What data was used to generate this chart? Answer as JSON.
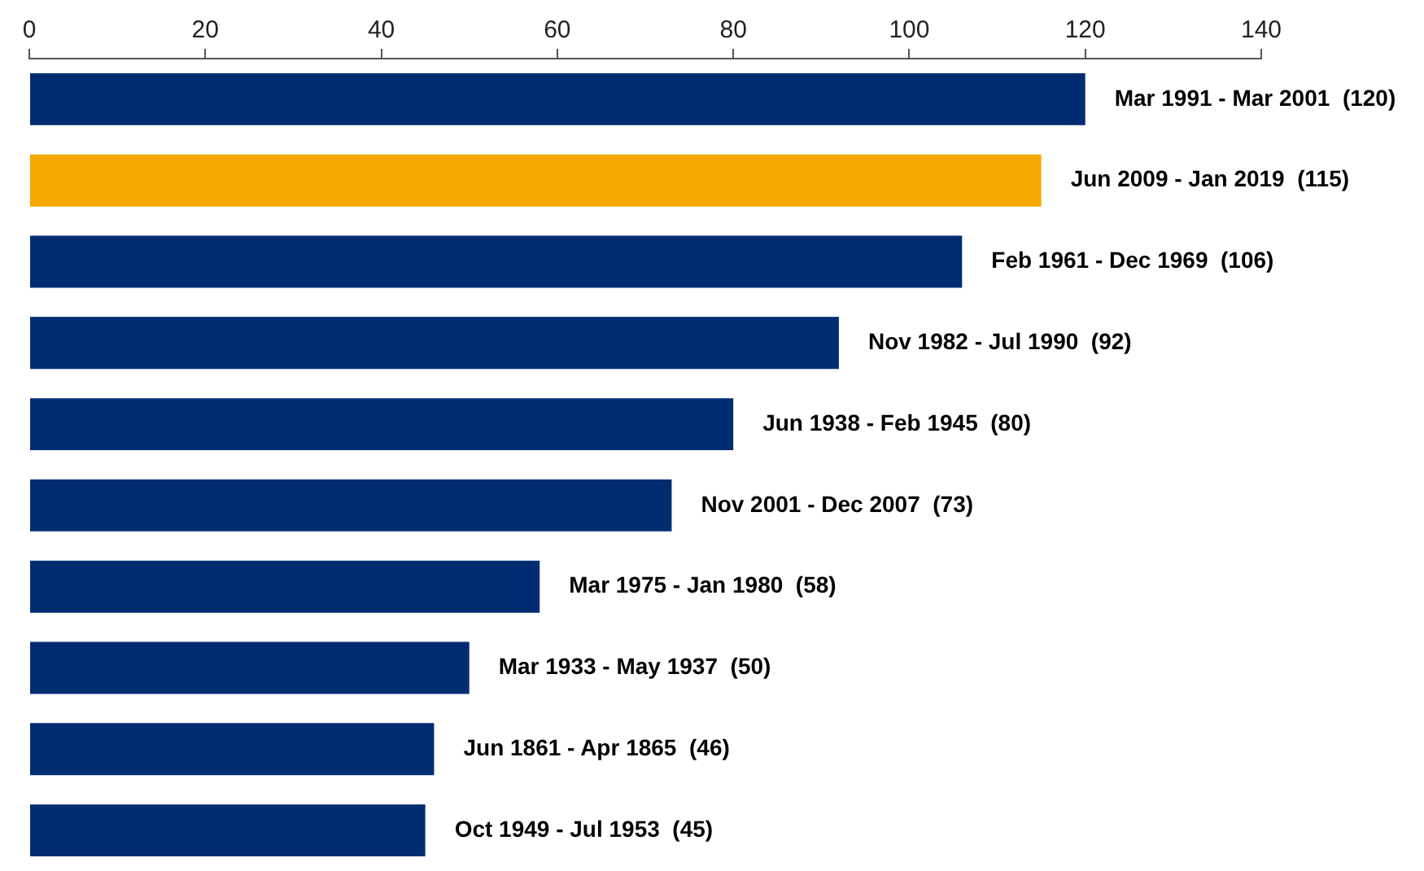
{
  "chart_data": {
    "type": "bar",
    "orientation": "horizontal",
    "categories": [
      null,
      null,
      null,
      null,
      null,
      null,
      null,
      null,
      null,
      null
    ],
    "values": [
      120,
      115,
      106,
      92,
      80,
      73,
      58,
      50,
      46,
      45
    ],
    "colors": [
      "#002d72",
      "#f5a800",
      "#002d72",
      "#002d72",
      "#002d72",
      "#002d72",
      "#002d72",
      "#002d72",
      "#002d72",
      "#002d72"
    ],
    "value_labels": [
      "Mar 1991 - Mar 2001  (120)",
      "Jun 2009 - Jan 2019  (115)",
      "Feb 1961 - Dec 1969  (106)",
      "Nov 1982 - Jul 1990  (92)",
      "Jun 1938 - Feb 1945  (80)",
      "Nov 2001 - Dec 2007  (73)",
      "Mar 1975 - Jan 1980  (58)",
      "Mar 1933 - May 1937  (50)",
      "Jun 1861 - Apr 1865  (46)",
      "Oct 1949 - Jul 1953  (45)"
    ],
    "xlim": [
      0,
      140
    ],
    "xticks": [
      0,
      20,
      40,
      60,
      80,
      100,
      120,
      140
    ],
    "grid": false
  }
}
